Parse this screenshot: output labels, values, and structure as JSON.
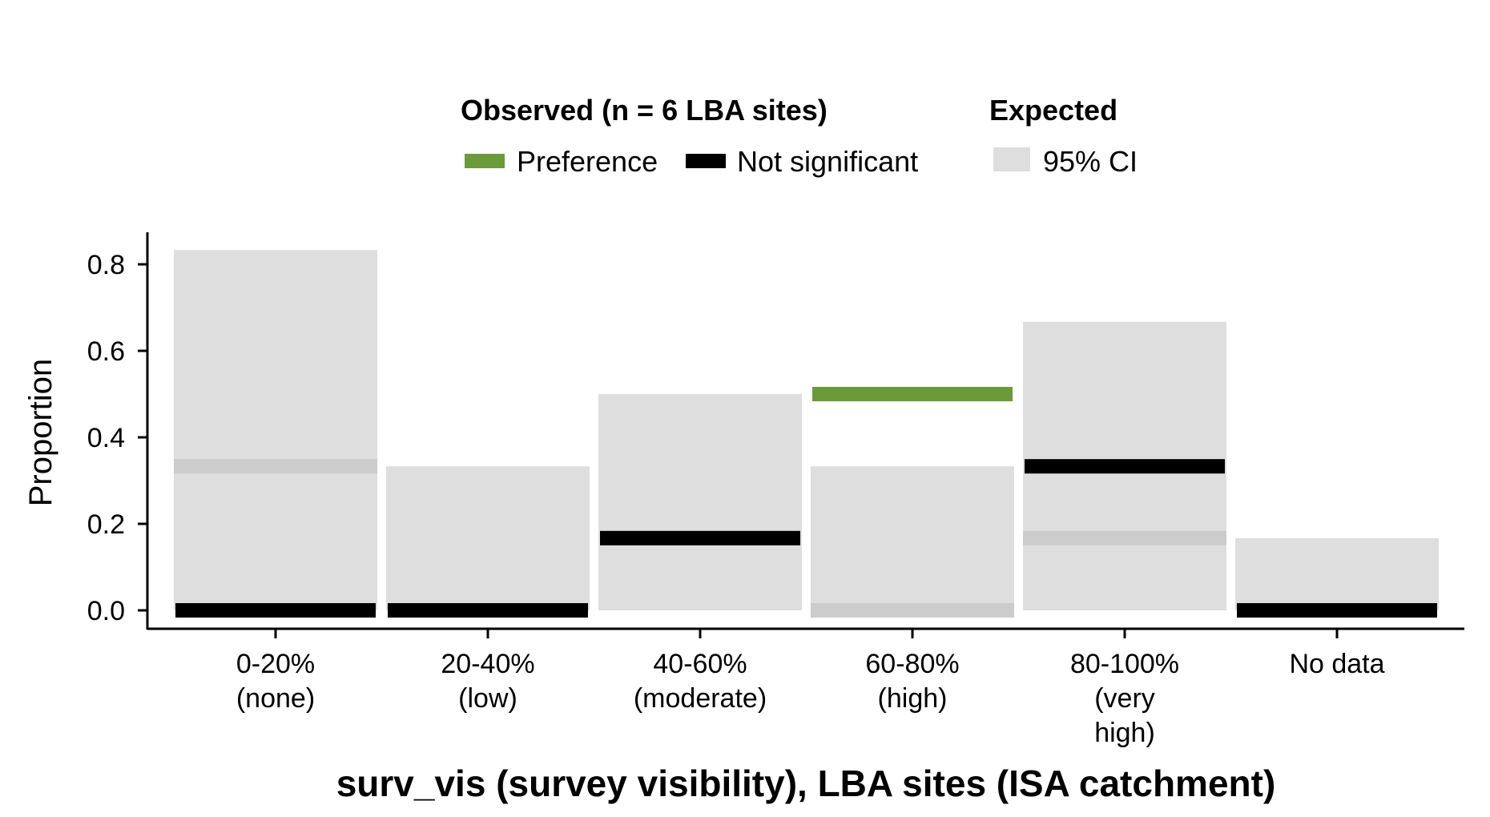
{
  "chart_data": {
    "type": "bar",
    "xlabel": "surv_vis (survey visibility), LBA sites (ISA catchment)",
    "ylabel": "Proportion",
    "ylim": [
      0,
      0.85
    ],
    "yticks": [
      "0.0",
      "0.2",
      "0.4",
      "0.6",
      "0.8"
    ],
    "ytick_values": [
      0.0,
      0.2,
      0.4,
      0.6,
      0.8
    ],
    "categories": [
      [
        "0-20%",
        "(none)"
      ],
      [
        "20-40%",
        "(low)"
      ],
      [
        "40-60%",
        "(moderate)"
      ],
      [
        "60-80%",
        "(high)"
      ],
      [
        "80-100%",
        "(very",
        "high)"
      ],
      [
        "No data"
      ]
    ],
    "expected_ci": [
      {
        "low": 0.0,
        "high": 0.833,
        "mean": 0.333
      },
      {
        "low": 0.0,
        "high": 0.333,
        "mean": null
      },
      {
        "low": 0.0,
        "high": 0.5,
        "mean": null
      },
      {
        "low": -0.015,
        "high": 0.333,
        "mean": 0.0
      },
      {
        "low": 0.0,
        "high": 0.667,
        "mean": 0.167
      },
      {
        "low": 0.0,
        "high": 0.167,
        "mean": null
      }
    ],
    "observed": [
      {
        "value": 0.0,
        "status": "not_significant"
      },
      {
        "value": 0.0,
        "status": "not_significant"
      },
      {
        "value": 0.167,
        "status": "not_significant"
      },
      {
        "value": 0.5,
        "status": "preference"
      },
      {
        "value": 0.333,
        "status": "not_significant"
      },
      {
        "value": 0.0,
        "status": "not_significant"
      }
    ],
    "legend": {
      "placement": "top",
      "observed_title": "Observed (n = 6 LBA sites)",
      "expected_title": "Expected",
      "preference_label": "Preference",
      "not_significant_label": "Not significant",
      "ci_label": "95% CI"
    },
    "colors": {
      "preference": "#6a9a3a",
      "not_significant": "#000000",
      "ci": "#dedede",
      "expected_mean": "#cccccc"
    }
  }
}
